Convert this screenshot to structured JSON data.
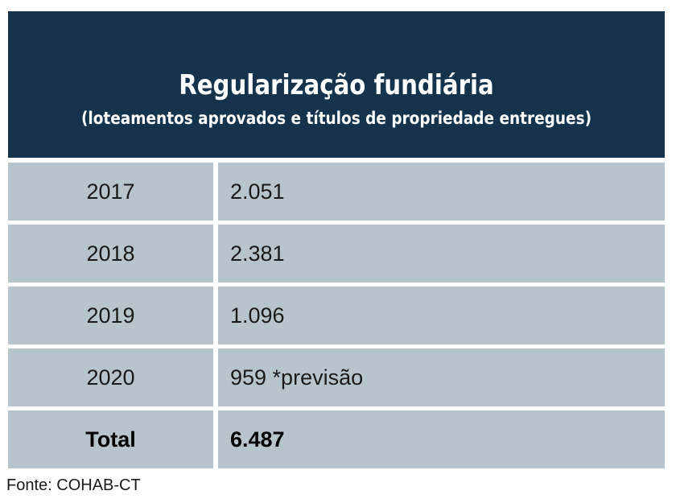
{
  "chart_data": {
    "type": "table",
    "title": "Regularização fundiária",
    "subtitle": "(loteamentos aprovados e títulos de propriedade entregues)",
    "rows": [
      {
        "year": "2017",
        "value": "2.051"
      },
      {
        "year": "2018",
        "value": "2.381"
      },
      {
        "year": "2019",
        "value": "1.096"
      },
      {
        "year": "2020",
        "value": "959 *previsão"
      }
    ],
    "total": {
      "label": "Total",
      "value": "6.487"
    },
    "source": "Fonte: COHAB-CT"
  },
  "colors": {
    "header_bg": "#15334d",
    "cell_bg": "#b8c4cb",
    "header_text": "#ffffff",
    "cell_text": "#1a1a1a"
  }
}
